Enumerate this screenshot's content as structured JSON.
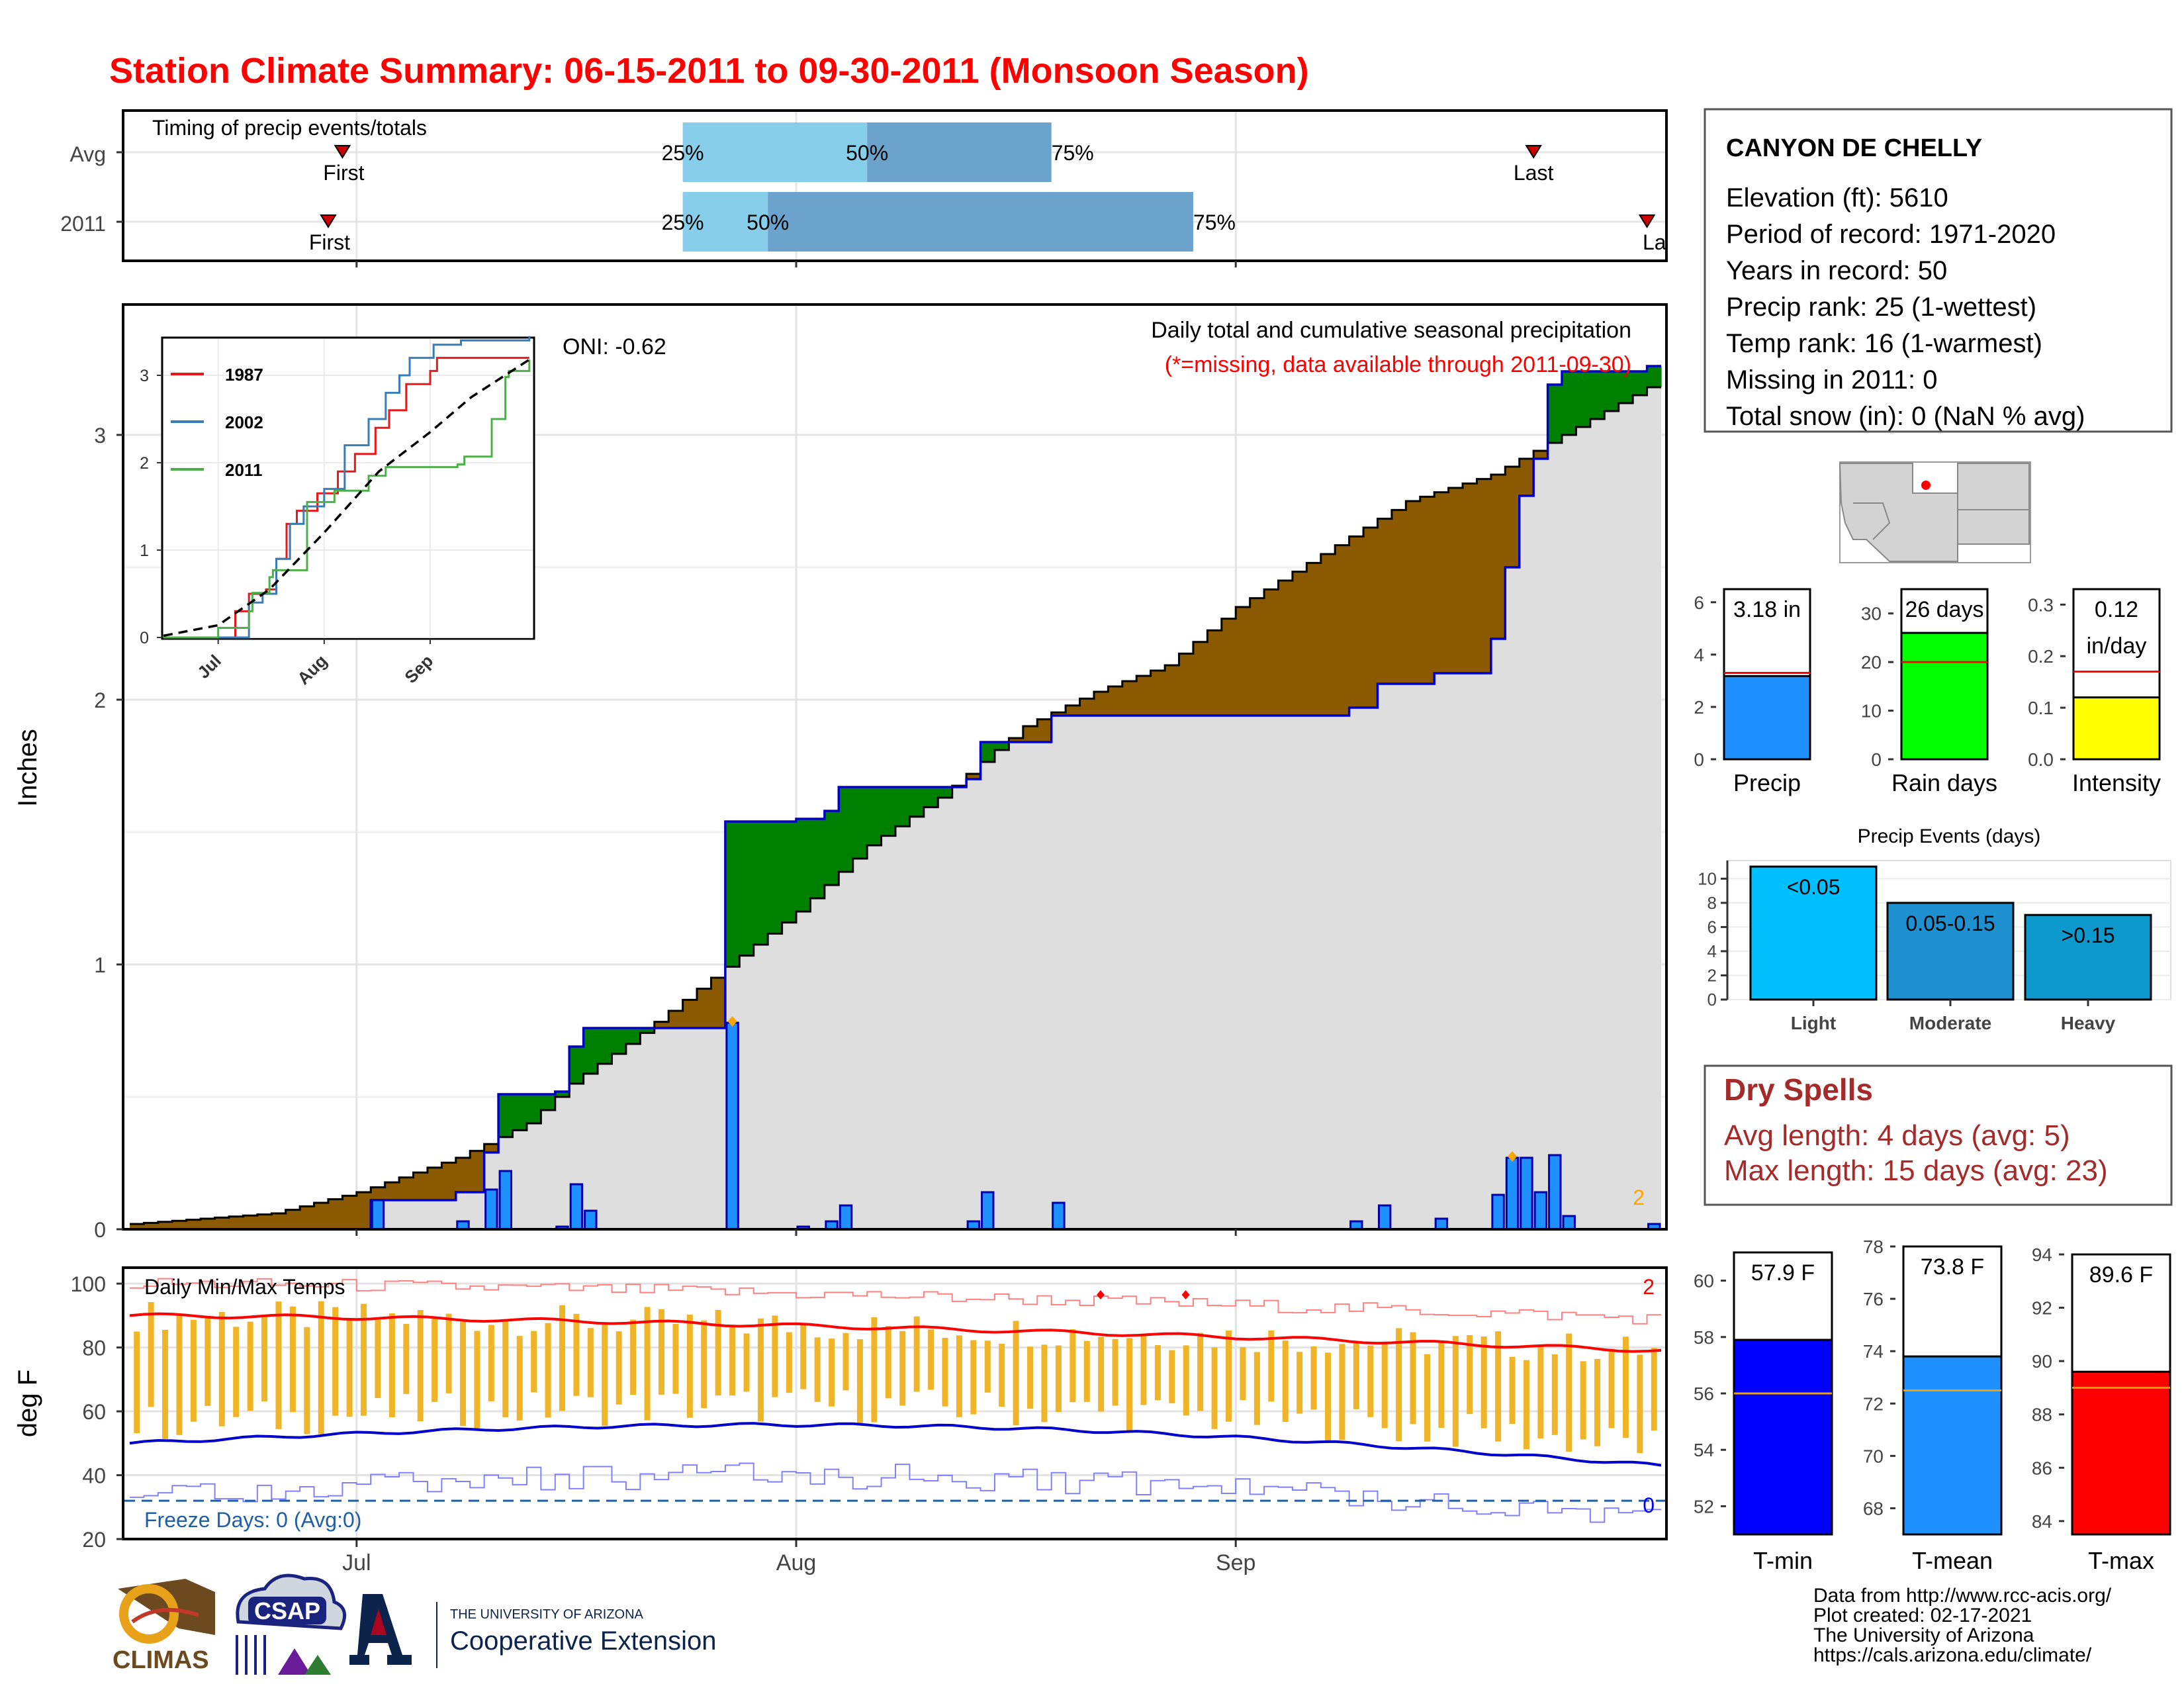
{
  "title": "Station Climate Summary: 06-15-2011 to 09-30-2011 (Monsoon Season)",
  "colors": {
    "title": "#ff0000",
    "above_avg": "#008000",
    "below_avg": "#8b5a00",
    "daily_bar": "#1e90ff",
    "quartile_light": "#87ceeb",
    "quartile_dark": "#6ba3cc",
    "dry_spells": "#a52a2a",
    "temp_bar": "#f0b429"
  },
  "timing": {
    "label": "Timing of precip events/totals",
    "rows": [
      "Avg",
      "2011"
    ],
    "first_label": "First",
    "last_label": "Last",
    "last_label_2011": "La",
    "q25": "25%",
    "q50": "50%",
    "q75": "75%",
    "avg": {
      "first": "2011-06-30",
      "q25": "2011-07-24",
      "q50": "2011-08-06",
      "q75": "2011-08-19",
      "last": "2011-09-22"
    },
    "y2011": {
      "first": "2011-06-29",
      "q25": "2011-07-24",
      "q50": "2011-07-30",
      "q75": "2011-08-29",
      "last": "2011-09-30"
    }
  },
  "main": {
    "ylabel": "Inches",
    "subtitle": "Daily total and cumulative seasonal precipitation",
    "note": "(*=missing, data available through 2011-09-30)",
    "oni": "ONI: -0.62",
    "corner_count": "2",
    "xticks": [
      "Jul",
      "Aug",
      "Sep"
    ],
    "yticks": [
      "0",
      "1",
      "2",
      "3"
    ]
  },
  "inset": {
    "legend": [
      "1987",
      "2002",
      "2011"
    ],
    "xticks": [
      "Jul",
      "Aug",
      "Sep"
    ],
    "yticks": [
      "0",
      "1",
      "2",
      "3"
    ]
  },
  "temps": {
    "label": "Daily Min/Max Temps",
    "ylabel": "deg F",
    "freeze": "Freeze Days: 0 (Avg:0)",
    "max_count": "2",
    "min_count": "0",
    "yticks": [
      "20",
      "40",
      "60",
      "80",
      "100"
    ]
  },
  "info": {
    "station": "CANYON DE CHELLY",
    "lines": [
      "Elevation (ft): 5610",
      "Period of record: 1971-2020",
      "Years in record: 50",
      "Precip rank: 25 (1-wettest)",
      "Temp rank: 16 (1-warmest)",
      "Missing in 2011: 0",
      "Total snow (in): 0 (NaN % avg)"
    ]
  },
  "mini_bars": {
    "precip": {
      "label": "Precip",
      "value_label": "3.18 in",
      "yticks": [
        "0",
        "2",
        "4",
        "6"
      ]
    },
    "rain_days": {
      "label": "Rain days",
      "value_label": "26 days",
      "yticks": [
        "0",
        "10",
        "20",
        "30"
      ]
    },
    "intensity": {
      "label": "Intensity",
      "value_label": "0.12",
      "value_unit": "in/day",
      "yticks": [
        "0.0",
        "0.1",
        "0.2",
        "0.3"
      ]
    }
  },
  "events": {
    "title": "Precip Events (days)",
    "categories": [
      "Light",
      "Moderate",
      "Heavy"
    ],
    "labels": [
      "<0.05",
      "0.05-0.15",
      ">0.15"
    ],
    "yticks": [
      "0",
      "2",
      "4",
      "6",
      "8",
      "10"
    ]
  },
  "dry_spells": {
    "title": "Dry Spells",
    "avg": "Avg length: 4 days (avg: 5)",
    "max": "Max length: 15 days (avg: 23)"
  },
  "temp_bars": {
    "tmin": {
      "label": "T-min",
      "value_label": "57.9 F",
      "yticks": [
        "52",
        "54",
        "56",
        "58",
        "60"
      ]
    },
    "tmean": {
      "label": "T-mean",
      "value_label": "73.8 F",
      "yticks": [
        "68",
        "70",
        "72",
        "74",
        "76",
        "78"
      ]
    },
    "tmax": {
      "label": "T-max",
      "value_label": "89.6 F",
      "yticks": [
        "84",
        "86",
        "88",
        "90",
        "92",
        "94"
      ]
    }
  },
  "footer": {
    "lines": [
      "Data from http://www.rcc-acis.org/",
      "Plot created: 02-17-2021",
      "The University of Arizona",
      "https://cals.arizona.edu/climate/"
    ],
    "logo1": "CLIMAS",
    "logo2": "CSAP",
    "logo3_line1": "THE UNIVERSITY OF ARIZONA",
    "logo3_line2": "Cooperative Extension"
  },
  "chart_data": [
    {
      "type": "area",
      "name": "main-precip",
      "title": "Daily total and cumulative seasonal precipitation",
      "ylabel": "Inches",
      "x_start": "2011-06-15",
      "x_end": "2011-09-30",
      "ylim": [
        0,
        3.5
      ],
      "daily_2011": [
        {
          "date": "2011-07-02",
          "value": 0.11
        },
        {
          "date": "2011-07-08",
          "value": 0.03
        },
        {
          "date": "2011-07-10",
          "value": 0.15
        },
        {
          "date": "2011-07-11",
          "value": 0.22
        },
        {
          "date": "2011-07-15",
          "value": 0.01
        },
        {
          "date": "2011-07-16",
          "value": 0.17
        },
        {
          "date": "2011-07-17",
          "value": 0.07
        },
        {
          "date": "2011-07-27",
          "value": 0.78
        },
        {
          "date": "2011-08-01",
          "value": 0.01
        },
        {
          "date": "2011-08-03",
          "value": 0.03
        },
        {
          "date": "2011-08-04",
          "value": 0.09
        },
        {
          "date": "2011-08-13",
          "value": 0.03
        },
        {
          "date": "2011-08-14",
          "value": 0.14
        },
        {
          "date": "2011-08-19",
          "value": 0.1
        },
        {
          "date": "2011-09-09",
          "value": 0.03
        },
        {
          "date": "2011-09-11",
          "value": 0.09
        },
        {
          "date": "2011-09-15",
          "value": 0.04
        },
        {
          "date": "2011-09-19",
          "value": 0.13
        },
        {
          "date": "2011-09-20",
          "value": 0.27
        },
        {
          "date": "2011-09-21",
          "value": 0.27
        },
        {
          "date": "2011-09-22",
          "value": 0.14
        },
        {
          "date": "2011-09-23",
          "value": 0.28
        },
        {
          "date": "2011-09-24",
          "value": 0.05
        },
        {
          "date": "2011-09-30",
          "value": 0.02
        }
      ],
      "cum_avg_points": [
        {
          "date": "2011-06-15",
          "value": 0.02
        },
        {
          "date": "2011-06-25",
          "value": 0.06
        },
        {
          "date": "2011-07-01",
          "value": 0.14
        },
        {
          "date": "2011-07-08",
          "value": 0.27
        },
        {
          "date": "2011-07-13",
          "value": 0.4
        },
        {
          "date": "2011-07-16",
          "value": 0.55
        },
        {
          "date": "2011-07-20",
          "value": 0.7
        },
        {
          "date": "2011-07-26",
          "value": 0.95
        },
        {
          "date": "2011-08-01",
          "value": 1.2
        },
        {
          "date": "2011-08-06",
          "value": 1.45
        },
        {
          "date": "2011-08-11",
          "value": 1.63
        },
        {
          "date": "2011-08-17",
          "value": 1.9
        },
        {
          "date": "2011-08-22",
          "value": 2.03
        },
        {
          "date": "2011-08-27",
          "value": 2.13
        },
        {
          "date": "2011-09-01",
          "value": 2.35
        },
        {
          "date": "2011-09-07",
          "value": 2.55
        },
        {
          "date": "2011-09-13",
          "value": 2.75
        },
        {
          "date": "2011-09-19",
          "value": 2.85
        },
        {
          "date": "2011-09-24",
          "value": 3.0
        },
        {
          "date": "2011-09-30",
          "value": 3.18
        }
      ]
    },
    {
      "type": "line",
      "name": "inset-cumulative",
      "series": [
        {
          "name": "1987",
          "points": [
            [
              "2011-06-15",
              0
            ],
            [
              "2011-07-03",
              0
            ],
            [
              "2011-07-06",
              0.3
            ],
            [
              "2011-07-10",
              0.5
            ],
            [
              "2011-07-15",
              0.55
            ],
            [
              "2011-07-18",
              0.9
            ],
            [
              "2011-07-21",
              1.3
            ],
            [
              "2011-07-24",
              1.45
            ],
            [
              "2011-07-30",
              1.65
            ],
            [
              "2011-08-05",
              1.9
            ],
            [
              "2011-08-10",
              2.1
            ],
            [
              "2011-08-16",
              2.4
            ],
            [
              "2011-08-20",
              2.6
            ],
            [
              "2011-08-25",
              2.9
            ],
            [
              "2011-09-01",
              3.05
            ],
            [
              "2011-09-03",
              3.2
            ],
            [
              "2011-09-30",
              3.2
            ]
          ]
        },
        {
          "name": "2002",
          "points": [
            [
              "2011-06-15",
              0
            ],
            [
              "2011-07-05",
              0
            ],
            [
              "2011-07-10",
              0.4
            ],
            [
              "2011-07-14",
              0.5
            ],
            [
              "2011-07-18",
              0.9
            ],
            [
              "2011-07-22",
              1.3
            ],
            [
              "2011-07-26",
              1.5
            ],
            [
              "2011-08-01",
              1.7
            ],
            [
              "2011-08-07",
              2.2
            ],
            [
              "2011-08-14",
              2.5
            ],
            [
              "2011-08-19",
              2.8
            ],
            [
              "2011-08-23",
              3.0
            ],
            [
              "2011-08-26",
              3.2
            ],
            [
              "2011-09-02",
              3.35
            ],
            [
              "2011-09-10",
              3.4
            ],
            [
              "2011-09-30",
              3.45
            ]
          ]
        },
        {
          "name": "2011",
          "points": [
            [
              "2011-06-15",
              0
            ],
            [
              "2011-07-01",
              0.11
            ],
            [
              "2011-07-10",
              0.3
            ],
            [
              "2011-07-11",
              0.51
            ],
            [
              "2011-07-16",
              0.69
            ],
            [
              "2011-07-17",
              0.77
            ],
            [
              "2011-07-27",
              1.55
            ],
            [
              "2011-08-04",
              1.68
            ],
            [
              "2011-08-14",
              1.85
            ],
            [
              "2011-08-19",
              1.95
            ],
            [
              "2011-09-09",
              1.98
            ],
            [
              "2011-09-11",
              2.07
            ],
            [
              "2011-09-19",
              2.5
            ],
            [
              "2011-09-23",
              2.98
            ],
            [
              "2011-09-24",
              3.05
            ],
            [
              "2011-09-30",
              3.18
            ]
          ]
        },
        {
          "name": "",
          "points": [
            [
              "2011-06-15",
              0.02
            ],
            [
              "2011-07-01",
              0.14
            ],
            [
              "2011-07-16",
              0.55
            ],
            [
              "2011-08-01",
              1.2
            ],
            [
              "2011-08-17",
              1.9
            ],
            [
              "2011-09-01",
              2.35
            ],
            [
              "2011-09-13",
              2.75
            ],
            [
              "2011-09-30",
              3.18
            ]
          ]
        }
      ],
      "ylim": [
        0,
        3.5
      ]
    },
    {
      "type": "bar",
      "name": "daily-temps",
      "title": "Daily Min/Max Temps",
      "ylabel": "deg F",
      "ylim": [
        20,
        105
      ],
      "freeze_line": 32,
      "avg_max_start": 90,
      "avg_max_end": 79,
      "avg_min_start": 50,
      "avg_min_end": 43
    },
    {
      "type": "bar",
      "name": "precip-summary",
      "categories": [
        "Precip",
        "Rain days",
        "Intensity"
      ],
      "values": [
        3.18,
        26,
        0.12
      ],
      "avgs": [
        3.3,
        20,
        0.17
      ],
      "ylims": [
        [
          0,
          6.5
        ],
        [
          0,
          35
        ],
        [
          0,
          0.33
        ]
      ]
    },
    {
      "type": "bar",
      "name": "precip-events",
      "title": "Precip Events (days)",
      "categories": [
        "Light",
        "Moderate",
        "Heavy"
      ],
      "values": [
        11,
        8,
        7
      ],
      "ylim": [
        0,
        11.5
      ]
    },
    {
      "type": "bar",
      "name": "temp-summary",
      "categories": [
        "T-min",
        "T-mean",
        "T-max"
      ],
      "values": [
        57.9,
        73.8,
        89.6
      ],
      "avgs": [
        56.0,
        72.5,
        89.0
      ],
      "ylims": [
        [
          51,
          61
        ],
        [
          67,
          78
        ],
        [
          83.5,
          94
        ]
      ]
    }
  ]
}
